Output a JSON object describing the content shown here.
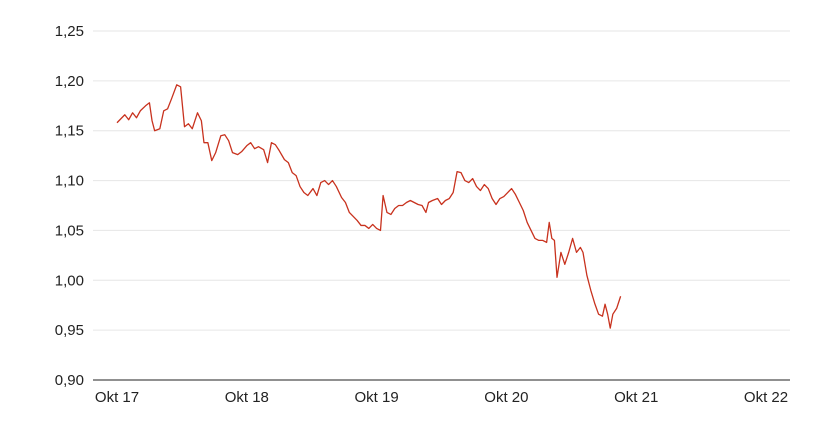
{
  "chart_data": {
    "type": "line",
    "title": "",
    "xlabel": "",
    "ylabel": "",
    "ylim": [
      0.9,
      1.25
    ],
    "yticks": [
      "0,90",
      "0,95",
      "1,00",
      "1,05",
      "1,10",
      "1,15",
      "1,20",
      "1,25"
    ],
    "ytick_values": [
      0.9,
      0.95,
      1.0,
      1.05,
      1.1,
      1.15,
      1.2,
      1.25
    ],
    "xticks": [
      "Okt 17",
      "Okt 18",
      "Okt 19",
      "Okt 20",
      "Okt 21",
      "Okt 22"
    ],
    "xtick_values": [
      2017.75,
      2018.75,
      2019.75,
      2020.75,
      2021.75,
      2022.75
    ],
    "xlim": [
      2017.75,
      2022.75
    ],
    "grid": true,
    "line_color": "#c8321e",
    "series": [
      {
        "points": [
          [
            2017.75,
            1.158
          ],
          [
            2017.78,
            1.162
          ],
          [
            2017.81,
            1.166
          ],
          [
            2017.84,
            1.161
          ],
          [
            2017.87,
            1.168
          ],
          [
            2017.9,
            1.163
          ],
          [
            2017.93,
            1.17
          ],
          [
            2017.97,
            1.175
          ],
          [
            2018.0,
            1.178
          ],
          [
            2018.02,
            1.16
          ],
          [
            2018.04,
            1.15
          ],
          [
            2018.08,
            1.152
          ],
          [
            2018.11,
            1.17
          ],
          [
            2018.14,
            1.172
          ],
          [
            2018.17,
            1.182
          ],
          [
            2018.21,
            1.196
          ],
          [
            2018.24,
            1.194
          ],
          [
            2018.27,
            1.154
          ],
          [
            2018.3,
            1.157
          ],
          [
            2018.33,
            1.152
          ],
          [
            2018.37,
            1.168
          ],
          [
            2018.4,
            1.16
          ],
          [
            2018.42,
            1.138
          ],
          [
            2018.45,
            1.138
          ],
          [
            2018.48,
            1.12
          ],
          [
            2018.51,
            1.128
          ],
          [
            2018.55,
            1.145
          ],
          [
            2018.58,
            1.146
          ],
          [
            2018.61,
            1.14
          ],
          [
            2018.64,
            1.128
          ],
          [
            2018.68,
            1.126
          ],
          [
            2018.71,
            1.129
          ],
          [
            2018.75,
            1.135
          ],
          [
            2018.78,
            1.138
          ],
          [
            2018.81,
            1.132
          ],
          [
            2018.84,
            1.134
          ],
          [
            2018.88,
            1.131
          ],
          [
            2018.91,
            1.118
          ],
          [
            2018.94,
            1.138
          ],
          [
            2018.97,
            1.136
          ],
          [
            2019.0,
            1.13
          ],
          [
            2019.04,
            1.121
          ],
          [
            2019.07,
            1.118
          ],
          [
            2019.1,
            1.108
          ],
          [
            2019.13,
            1.105
          ],
          [
            2019.16,
            1.094
          ],
          [
            2019.19,
            1.088
          ],
          [
            2019.22,
            1.085
          ],
          [
            2019.26,
            1.092
          ],
          [
            2019.29,
            1.085
          ],
          [
            2019.32,
            1.098
          ],
          [
            2019.35,
            1.1
          ],
          [
            2019.38,
            1.096
          ],
          [
            2019.41,
            1.1
          ],
          [
            2019.44,
            1.094
          ],
          [
            2019.48,
            1.083
          ],
          [
            2019.51,
            1.078
          ],
          [
            2019.54,
            1.068
          ],
          [
            2019.57,
            1.064
          ],
          [
            2019.6,
            1.06
          ],
          [
            2019.63,
            1.055
          ],
          [
            2019.66,
            1.055
          ],
          [
            2019.69,
            1.052
          ],
          [
            2019.72,
            1.056
          ],
          [
            2019.75,
            1.052
          ],
          [
            2019.78,
            1.05
          ],
          [
            2019.8,
            1.085
          ],
          [
            2019.83,
            1.068
          ],
          [
            2019.86,
            1.066
          ],
          [
            2019.89,
            1.072
          ],
          [
            2019.92,
            1.075
          ],
          [
            2019.95,
            1.075
          ],
          [
            2019.98,
            1.078
          ],
          [
            2020.01,
            1.08
          ],
          [
            2020.04,
            1.078
          ],
          [
            2020.07,
            1.076
          ],
          [
            2020.1,
            1.075
          ],
          [
            2020.13,
            1.068
          ],
          [
            2020.15,
            1.078
          ],
          [
            2020.18,
            1.08
          ],
          [
            2020.22,
            1.082
          ],
          [
            2020.25,
            1.076
          ],
          [
            2020.28,
            1.08
          ],
          [
            2020.31,
            1.082
          ],
          [
            2020.34,
            1.088
          ],
          [
            2020.37,
            1.109
          ],
          [
            2020.4,
            1.108
          ],
          [
            2020.43,
            1.1
          ],
          [
            2020.46,
            1.098
          ],
          [
            2020.49,
            1.102
          ],
          [
            2020.52,
            1.094
          ],
          [
            2020.55,
            1.09
          ],
          [
            2020.58,
            1.096
          ],
          [
            2020.61,
            1.092
          ],
          [
            2020.64,
            1.082
          ],
          [
            2020.67,
            1.076
          ],
          [
            2020.7,
            1.082
          ],
          [
            2020.73,
            1.084
          ],
          [
            2020.76,
            1.088
          ],
          [
            2020.79,
            1.092
          ],
          [
            2020.82,
            1.086
          ],
          [
            2020.85,
            1.078
          ],
          [
            2020.88,
            1.07
          ],
          [
            2020.91,
            1.058
          ],
          [
            2020.94,
            1.05
          ],
          [
            2020.97,
            1.042
          ],
          [
            2021.0,
            1.04
          ],
          [
            2021.03,
            1.04
          ],
          [
            2021.06,
            1.038
          ],
          [
            2021.08,
            1.058
          ],
          [
            2021.1,
            1.042
          ],
          [
            2021.12,
            1.04
          ],
          [
            2021.14,
            1.003
          ],
          [
            2021.17,
            1.028
          ],
          [
            2021.2,
            1.016
          ],
          [
            2021.23,
            1.028
          ],
          [
            2021.26,
            1.042
          ],
          [
            2021.29,
            1.028
          ],
          [
            2021.32,
            1.033
          ],
          [
            2021.34,
            1.028
          ],
          [
            2021.37,
            1.005
          ],
          [
            2021.4,
            0.99
          ],
          [
            2021.43,
            0.977
          ],
          [
            2021.46,
            0.966
          ],
          [
            2021.49,
            0.964
          ],
          [
            2021.51,
            0.976
          ],
          [
            2021.53,
            0.966
          ],
          [
            2021.55,
            0.952
          ],
          [
            2021.57,
            0.966
          ],
          [
            2021.6,
            0.972
          ],
          [
            2021.63,
            0.984
          ]
        ]
      }
    ]
  }
}
